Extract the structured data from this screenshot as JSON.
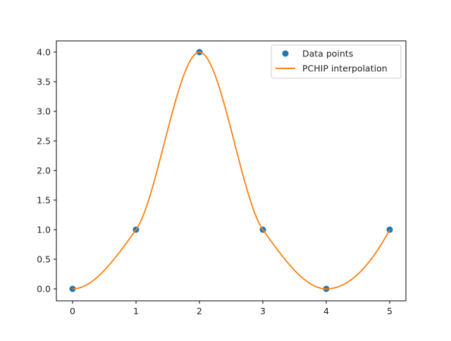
{
  "chart_data": {
    "type": "line",
    "title": "",
    "xlabel": "",
    "ylabel": "",
    "xlim": [
      -0.25,
      5.25
    ],
    "ylim": [
      -0.2,
      4.2
    ],
    "grid": false,
    "legend_position": "upper right",
    "x_ticks": [
      "0",
      "1",
      "2",
      "3",
      "4",
      "5"
    ],
    "y_ticks": [
      "0.0",
      "0.5",
      "1.0",
      "1.5",
      "2.0",
      "2.5",
      "3.0",
      "3.5",
      "4.0"
    ],
    "series": [
      {
        "name": "Data points",
        "kind": "scatter",
        "color": "#1f77b4",
        "x": [
          0,
          1,
          2,
          3,
          4,
          5
        ],
        "y": [
          0,
          1,
          4,
          1,
          0,
          1
        ]
      },
      {
        "name": "PCHIP interpolation",
        "kind": "line",
        "color": "#ff7f0e",
        "x": [
          0,
          1,
          2,
          3,
          4,
          5
        ],
        "y": [
          0,
          1,
          4,
          1,
          0,
          1
        ]
      }
    ]
  },
  "legend": {
    "items": [
      {
        "label": "Data points"
      },
      {
        "label": "PCHIP interpolation"
      }
    ]
  }
}
